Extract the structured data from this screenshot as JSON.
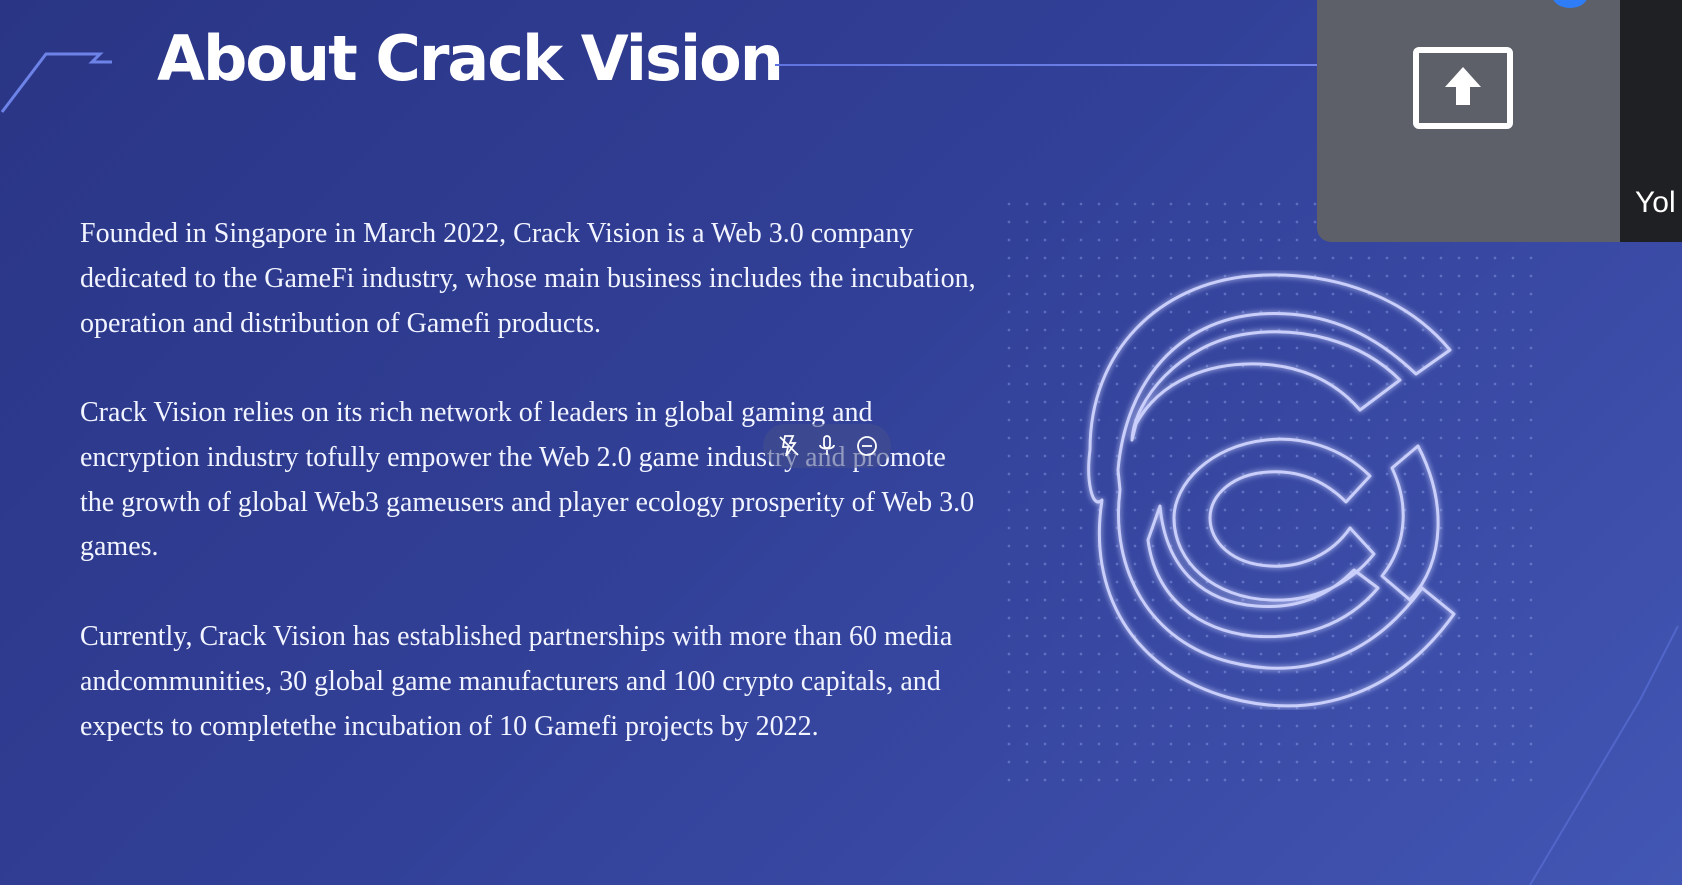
{
  "slide": {
    "title": "About Crack Vision",
    "paragraphs": [
      "Founded in Singapore in March 2022, Crack Vision is a Web 3.0 company dedicated to the GameFi industry, whose main business includes the incubation, operation and distribution of Gamefi products.",
      "Crack Vision relies on its rich network of leaders in global gaming and encryption industry tofully empower the Web 2.0 game industry and promote the growth of global Web3 gameusers and player ecology prosperity of Web 3.0 games.",
      "Currently, Crack Vision has established partnerships with more than 60 media andcommunities, 30 global game manufacturers and 100 crypto capitals, and expects to completethe incubation of 10 Gamefi projects by 2022."
    ],
    "logo_icon": "crack-vision-logo",
    "accent_color": "#5f74e0"
  },
  "dictation_toolbar": {
    "icons": [
      "flash-off-icon",
      "microphone-icon",
      "minus-circle-icon"
    ]
  },
  "overlay": {
    "share_icon": "share-screen-icon",
    "notification_color": "#2f7df6",
    "participant_name": "Yol"
  }
}
